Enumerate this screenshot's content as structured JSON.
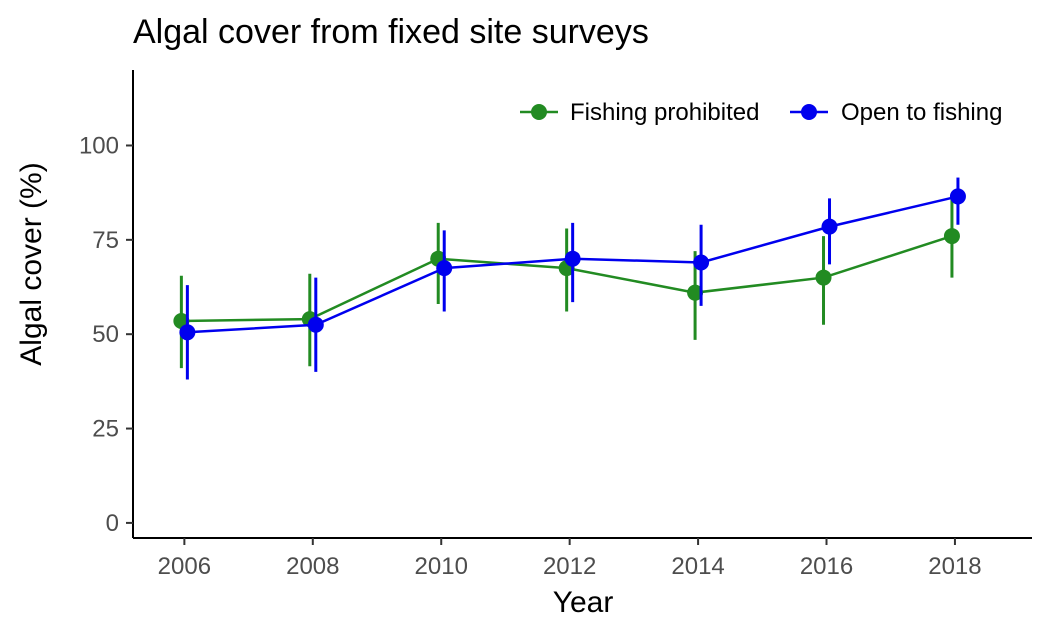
{
  "chart_data": {
    "type": "line",
    "title": "Algal cover from fixed site surveys",
    "xlabel": "Year",
    "ylabel": "Algal  cover (%)",
    "x": [
      2006,
      2008,
      2010,
      2012,
      2014,
      2016,
      2018
    ],
    "xlim": [
      2005.2,
      2019.2
    ],
    "ylim": [
      -4,
      120
    ],
    "xticks": [
      "2006",
      "2008",
      "2010",
      "2012",
      "2014",
      "2016",
      "2018"
    ],
    "yticks": [
      "0",
      "25",
      "50",
      "75",
      "100"
    ],
    "grid": false,
    "legend_position": "top-right",
    "series": [
      {
        "name": "Fishing prohibited",
        "color": "#228B22",
        "values": [
          53.5,
          54,
          70,
          67.5,
          61,
          65,
          76
        ],
        "error_low": [
          41,
          41.5,
          58,
          56,
          48.5,
          52.5,
          65
        ],
        "error_high": [
          65.5,
          66,
          79.5,
          78,
          72,
          76,
          86
        ]
      },
      {
        "name": "Open to fishing",
        "color": "#0000EE",
        "values": [
          50.5,
          52.5,
          67.5,
          70,
          69,
          78.5,
          86.5
        ],
        "error_low": [
          38,
          40,
          56,
          58.5,
          57.5,
          68.5,
          79
        ],
        "error_high": [
          63,
          65,
          77.5,
          79.5,
          79,
          86,
          91.5
        ]
      }
    ]
  }
}
